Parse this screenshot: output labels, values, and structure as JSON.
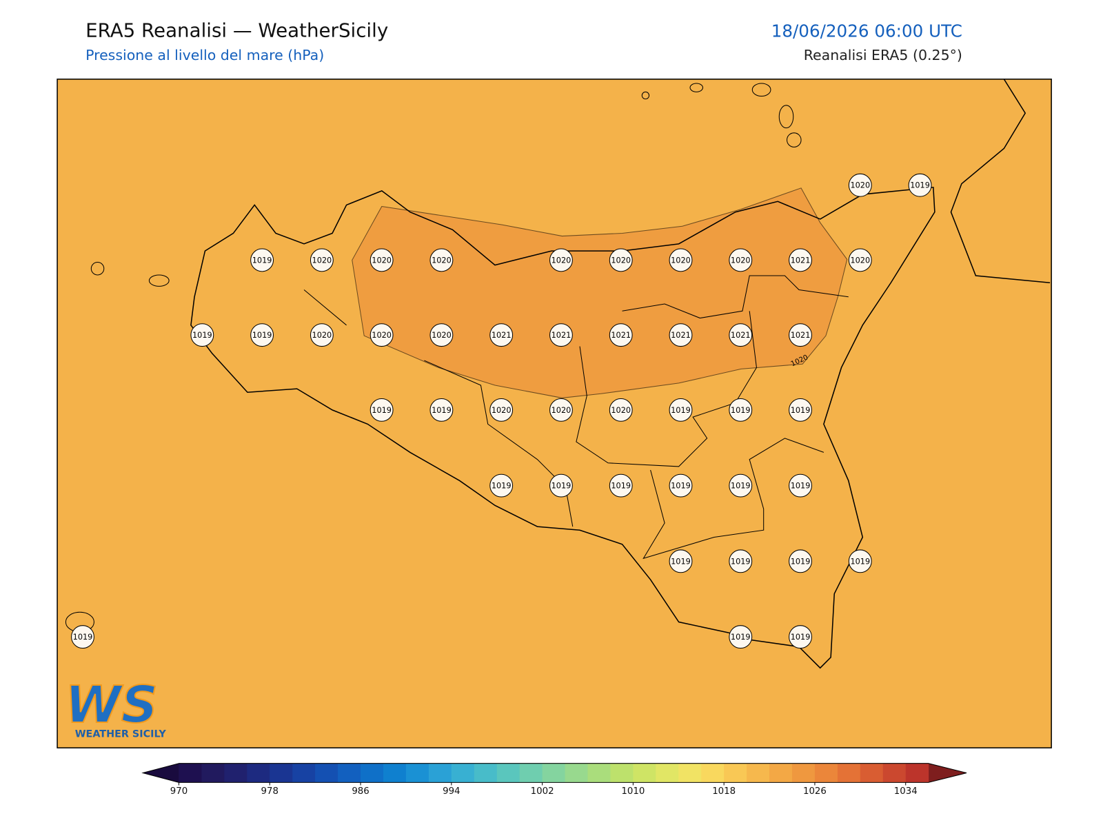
{
  "header": {
    "title": "ERA5 Reanalisi — WeatherSicily",
    "subtitle": "Pressione al livello del mare (hPa)",
    "datetime": "18/06/2026 06:00 UTC",
    "source": "Reanalisi ERA5 (0.25°)"
  },
  "map": {
    "stations": [
      1020,
      1019,
      1019,
      1020,
      1020,
      1020,
      1020,
      1020,
      1020,
      1020,
      1021,
      1020,
      1019,
      1019,
      1020,
      1020,
      1020,
      1021,
      1021,
      1021,
      1021,
      1021,
      1021,
      1019,
      1019,
      1020,
      1020,
      1020,
      1019,
      1019,
      1019,
      1019,
      1019,
      1019,
      1019,
      1019,
      1019,
      1019,
      1019,
      1019,
      1019,
      1019,
      1019,
      1019
    ],
    "contour_label": "1020"
  },
  "colorbar": {
    "range": [
      970,
      1036
    ],
    "ticks": [
      970,
      978,
      986,
      994,
      1002,
      1010,
      1018,
      1026,
      1034
    ],
    "colors": [
      "#1e1050",
      "#211a5e",
      "#20216e",
      "#1d2a80",
      "#1a3592",
      "#1742a3",
      "#1450b2",
      "#1260bf",
      "#0f70c8",
      "#0f80cf",
      "#1a91d4",
      "#2aa1d6",
      "#38b0d2",
      "#48bcc9",
      "#5ac6bd",
      "#6fceaf",
      "#84d49f",
      "#98d98e",
      "#aadd7c",
      "#bde16c",
      "#cfe465",
      "#e1e665",
      "#f1e364",
      "#f9d85e",
      "#f9c855",
      "#f6b84d",
      "#f3a845",
      "#ef983f",
      "#eb863a",
      "#e47236",
      "#d95d32",
      "#cb482f",
      "#bc342b"
    ],
    "under_color": "#190b3e",
    "over_color": "#7e1e1e"
  },
  "logo": {
    "mark": "WS",
    "text": "WEATHER SICILY"
  }
}
